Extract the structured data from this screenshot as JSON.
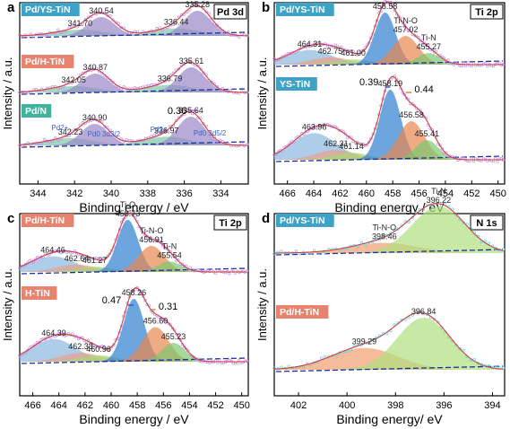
{
  "chart_data": [
    {
      "type": "line",
      "panel_letter": "a",
      "title": "Pd 3d",
      "xlabel": "Binding energy / eV",
      "ylabel": "Intensity / a.u.",
      "xlim": [
        345,
        332.5
      ],
      "x_ticks": [
        344,
        342,
        340,
        338,
        336,
        334
      ],
      "grid": false,
      "series": [
        {
          "name": "Pd/YS-TiN",
          "label_color": "#3fa3c8",
          "offset": 2.0,
          "peaks": [
            [
              341.7,
              0.25,
              1.3,
              "#7fc7a6"
            ],
            [
              340.54,
              0.75,
              0.75,
              "#9a88c8"
            ],
            [
              336.44,
              0.3,
              1.3,
              "#7fc7a6"
            ],
            [
              335.28,
              1.0,
              0.75,
              "#9a88c8"
            ]
          ],
          "peak_labels": [
            "341.70",
            "340.54",
            "336.44",
            "335.28"
          ]
        },
        {
          "name": "Pd/H-TiN",
          "label_color": "#e8846e",
          "offset": 1.0,
          "peaks": [
            [
              342.05,
              0.25,
              1.3,
              "#7fc7a6"
            ],
            [
              340.87,
              0.75,
              0.75,
              "#9a88c8"
            ],
            [
              336.79,
              0.3,
              1.3,
              "#7fc7a6"
            ],
            [
              335.61,
              1.0,
              0.75,
              "#9a88c8"
            ]
          ],
          "peak_labels": [
            "342.05",
            "340.87",
            "336.79",
            "335.61"
          ]
        },
        {
          "name": "Pd/N",
          "label_color": "#3fb49a",
          "offset": 0.0,
          "peaks": [
            [
              342.23,
              0.25,
              1.3,
              "#7fc7a6"
            ],
            [
              340.9,
              0.75,
              0.75,
              "#9a88c8"
            ],
            [
              336.97,
              0.3,
              1.3,
              "#7fc7a6"
            ],
            [
              335.64,
              1.0,
              0.75,
              "#9a88c8"
            ]
          ],
          "peak_labels": [
            "342.23",
            "340.90",
            "336.97",
            "335.64"
          ]
        }
      ],
      "annotations": [
        "Pd2+",
        "Pd0 3d3/2",
        "Pd2+",
        "Pd0 3d5/2"
      ],
      "shift_label": "0.36"
    },
    {
      "type": "line",
      "panel_letter": "b",
      "title": "Ti 2p",
      "xlabel": "Binding energy / eV",
      "ylabel": "Intensity / a.u.",
      "xlim": [
        467,
        449.5
      ],
      "x_ticks": [
        466,
        464,
        462,
        460,
        458,
        456,
        454,
        452,
        450
      ],
      "grid": false,
      "series": [
        {
          "name": "Pd/YS-TiN",
          "label_color": "#3fa3c8",
          "offset": 1.0,
          "peaks": [
            [
              464.31,
              0.28,
              1.7,
              "#8ab8e0"
            ],
            [
              462.75,
              0.14,
              1.5,
              "#e8a088"
            ],
            [
              461.0,
              0.1,
              1.4,
              "#a8d878"
            ],
            [
              458.58,
              1.0,
              0.8,
              "#2f7fd0"
            ],
            [
              457.02,
              0.55,
              1.0,
              "#e88850"
            ],
            [
              455.27,
              0.22,
              0.9,
              "#7fc870"
            ]
          ],
          "peak_labels": [
            "464.31",
            "462.75",
            "461.00",
            "458.58",
            "457.02",
            "455.27"
          ],
          "component_labels": [
            "Ti-O",
            "Ti-N-O",
            "Ti-N"
          ]
        },
        {
          "name": "YS-TiN",
          "label_color": "#3fa3c8",
          "offset": 0.0,
          "peaks": [
            [
              463.96,
              0.38,
              1.7,
              "#8ab8e0"
            ],
            [
              462.31,
              0.14,
              1.5,
              "#e8a088"
            ],
            [
              461.14,
              0.1,
              1.4,
              "#a8d878"
            ],
            [
              458.19,
              1.0,
              0.8,
              "#2f7fd0"
            ],
            [
              456.58,
              0.55,
              1.0,
              "#e88850"
            ],
            [
              455.41,
              0.28,
              0.9,
              "#7fc870"
            ]
          ],
          "peak_labels": [
            "463.96",
            "462.31",
            "461.14",
            "458.19",
            "456.58",
            "455.41"
          ]
        }
      ],
      "shift_labels": [
        "0.39",
        "0.44"
      ]
    },
    {
      "type": "line",
      "panel_letter": "c",
      "title": "Ti 2p",
      "xlabel": "Binding energy / eV",
      "ylabel": "Intensity / a.u.",
      "xlim": [
        467,
        449.5
      ],
      "x_ticks": [
        466,
        464,
        462,
        460,
        458,
        456,
        454,
        452,
        450
      ],
      "grid": false,
      "series": [
        {
          "name": "Pd/H-TiN",
          "label_color": "#e8846e",
          "offset": 1.0,
          "peaks": [
            [
              464.46,
              0.3,
              1.7,
              "#8ab8e0"
            ],
            [
              462.64,
              0.14,
              1.5,
              "#e8a088"
            ],
            [
              461.27,
              0.1,
              1.4,
              "#a8d878"
            ],
            [
              458.73,
              1.0,
              0.8,
              "#2f7fd0"
            ],
            [
              456.91,
              0.5,
              1.0,
              "#e88850"
            ],
            [
              455.54,
              0.2,
              0.9,
              "#7fc870"
            ]
          ],
          "peak_labels": [
            "464.46",
            "462.64",
            "461.27",
            "458.73",
            "456.91",
            "455.54"
          ],
          "component_labels": [
            "Ti-O",
            "Ti-N-O",
            "Ti-N"
          ]
        },
        {
          "name": "H-TiN",
          "label_color": "#e8846e",
          "offset": 0.0,
          "peaks": [
            [
              464.39,
              0.36,
              1.7,
              "#8ab8e0"
            ],
            [
              462.33,
              0.14,
              1.5,
              "#e8a088"
            ],
            [
              460.96,
              0.1,
              1.4,
              "#a8d878"
            ],
            [
              458.26,
              1.0,
              0.8,
              "#2f7fd0"
            ],
            [
              456.6,
              0.55,
              1.0,
              "#e88850"
            ],
            [
              455.23,
              0.3,
              0.9,
              "#7fc870"
            ]
          ],
          "peak_labels": [
            "464.39",
            "462.33",
            "460.96",
            "458.26",
            "456.60",
            "455.23"
          ]
        }
      ],
      "shift_labels": [
        "0.47",
        "0.31"
      ]
    },
    {
      "type": "line",
      "panel_letter": "d",
      "title": "N 1s",
      "xlabel": "Binding energy/ eV",
      "ylabel": "Intensity / a.u.",
      "xlim": [
        403,
        393.5
      ],
      "x_ticks": [
        402,
        400,
        398,
        396,
        394
      ],
      "grid": false,
      "series": [
        {
          "name": "Pd/YS-TiN",
          "label_color": "#3fa3c8",
          "offset": 1.0,
          "peaks": [
            [
              398.46,
              0.22,
              1.4,
              "#f0a070"
            ],
            [
              396.22,
              1.0,
              1.1,
              "#b0e080"
            ]
          ],
          "peak_labels": [
            "398.46",
            "396.22"
          ],
          "component_labels": [
            "Ti-N-O",
            "Ti-N"
          ]
        },
        {
          "name": "Pd/H-TiN",
          "label_color": "#e8846e",
          "offset": 0.0,
          "peaks": [
            [
              399.29,
              0.42,
              1.4,
              "#f0a070"
            ],
            [
              396.84,
              1.0,
              1.1,
              "#b0e080"
            ]
          ],
          "peak_labels": [
            "399.29",
            "396.84"
          ]
        }
      ]
    }
  ]
}
